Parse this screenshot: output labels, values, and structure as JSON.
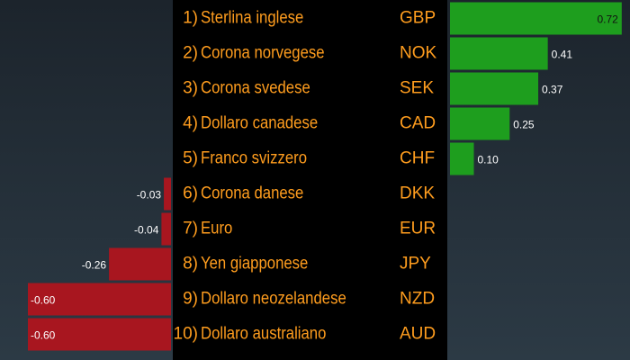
{
  "chart_data": {
    "type": "diverging-bar",
    "ranks": [
      "1)",
      "2)",
      "3)",
      "4)",
      "5)",
      "6)",
      "7)",
      "8)",
      "9)",
      "10)"
    ],
    "categories": [
      "Sterlina inglese",
      "Corona norvegese",
      "Corona svedese",
      "Dollaro canadese",
      "Franco svizzero",
      "Corona danese",
      "Euro",
      "Yen giapponese",
      "Dollaro neozelandese",
      "Dollaro australiano"
    ],
    "codes": [
      "GBP",
      "NOK",
      "SEK",
      "CAD",
      "CHF",
      "DKK",
      "EUR",
      "JPY",
      "NZD",
      "AUD"
    ],
    "values": [
      0.72,
      0.41,
      0.37,
      0.25,
      0.1,
      -0.03,
      -0.04,
      -0.26,
      -0.6,
      -0.6
    ],
    "value_labels": [
      "0.72",
      "0.41",
      "0.37",
      "0.25",
      "0.10",
      "-0.03",
      "-0.04",
      "-0.26",
      "-0.60",
      "-0.60"
    ],
    "positive_color": "#1e9e1e",
    "negative_color": "#a8161f"
  }
}
